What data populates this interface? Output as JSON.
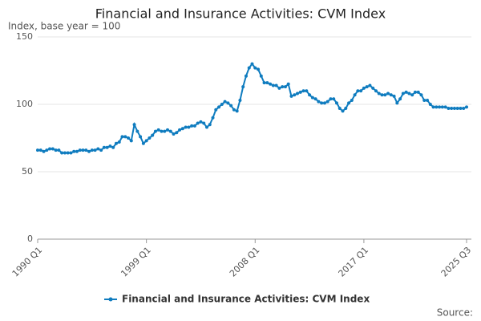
{
  "chart_data": {
    "type": "line",
    "title": "Financial and Insurance Activities: CVM Index",
    "subtitle": "Index, base year = 100",
    "source": "Source:",
    "categories": [
      "1990 Q1",
      null,
      null,
      null,
      null,
      null,
      null,
      null,
      null,
      null,
      null,
      null,
      null,
      null,
      null,
      null,
      null,
      null,
      null,
      null,
      null,
      null,
      null,
      null,
      null,
      null,
      null,
      null,
      null,
      null,
      null,
      null,
      null,
      null,
      null,
      null,
      "1999 Q1",
      null,
      null,
      null,
      null,
      null,
      null,
      null,
      null,
      null,
      null,
      null,
      null,
      null,
      null,
      null,
      null,
      null,
      null,
      null,
      null,
      null,
      null,
      null,
      null,
      null,
      null,
      null,
      null,
      null,
      null,
      null,
      null,
      null,
      null,
      null,
      "2008 Q1",
      null,
      null,
      null,
      null,
      null,
      null,
      null,
      null,
      null,
      null,
      null,
      null,
      null,
      null,
      null,
      null,
      null,
      null,
      null,
      null,
      null,
      null,
      null,
      null,
      null,
      null,
      null,
      null,
      null,
      null,
      null,
      null,
      null,
      null,
      null,
      "2017 Q1",
      null,
      null,
      null,
      null,
      null,
      null,
      null,
      null,
      null,
      null,
      null,
      null,
      null,
      null,
      null,
      null,
      null,
      null,
      null,
      null,
      null,
      null,
      null,
      null,
      null,
      null,
      null,
      null,
      null,
      null,
      null,
      null,
      null,
      "2025 Q3"
    ],
    "series": [
      {
        "name": "Financial and Insurance Activities: CVM Index",
        "color": "#0f7cbf",
        "values": [
          66,
          66,
          65,
          66,
          67,
          67,
          66,
          66,
          64,
          64,
          64,
          64,
          65,
          65,
          66,
          66,
          66,
          65,
          66,
          66,
          67,
          66,
          68,
          68,
          69,
          68,
          71,
          72,
          76,
          76,
          75,
          73,
          85,
          80,
          76,
          71,
          73,
          75,
          77,
          80,
          81,
          80,
          80,
          81,
          80,
          78,
          79,
          81,
          82,
          83,
          83,
          84,
          84,
          86,
          87,
          86,
          83,
          85,
          90,
          96,
          98,
          100,
          102,
          101,
          99,
          96,
          95,
          103,
          113,
          121,
          127,
          130,
          127,
          126,
          121,
          116,
          116,
          115,
          114,
          114,
          112,
          113,
          113,
          115,
          106,
          107,
          108,
          109,
          110,
          110,
          107,
          105,
          104,
          102,
          101,
          101,
          102,
          104,
          104,
          101,
          97,
          95,
          97,
          101,
          103,
          107,
          110,
          110,
          112,
          113,
          114,
          112,
          110,
          108,
          107,
          107,
          108,
          107,
          106,
          101,
          104,
          108,
          109,
          108,
          107,
          109,
          109,
          107,
          103,
          103,
          100,
          98,
          98,
          98,
          98,
          98,
          97,
          97,
          97,
          97,
          97,
          97,
          98
        ]
      }
    ],
    "ylim": [
      0,
      150
    ],
    "yticks": [
      0,
      50,
      100,
      150
    ],
    "grid": true
  }
}
